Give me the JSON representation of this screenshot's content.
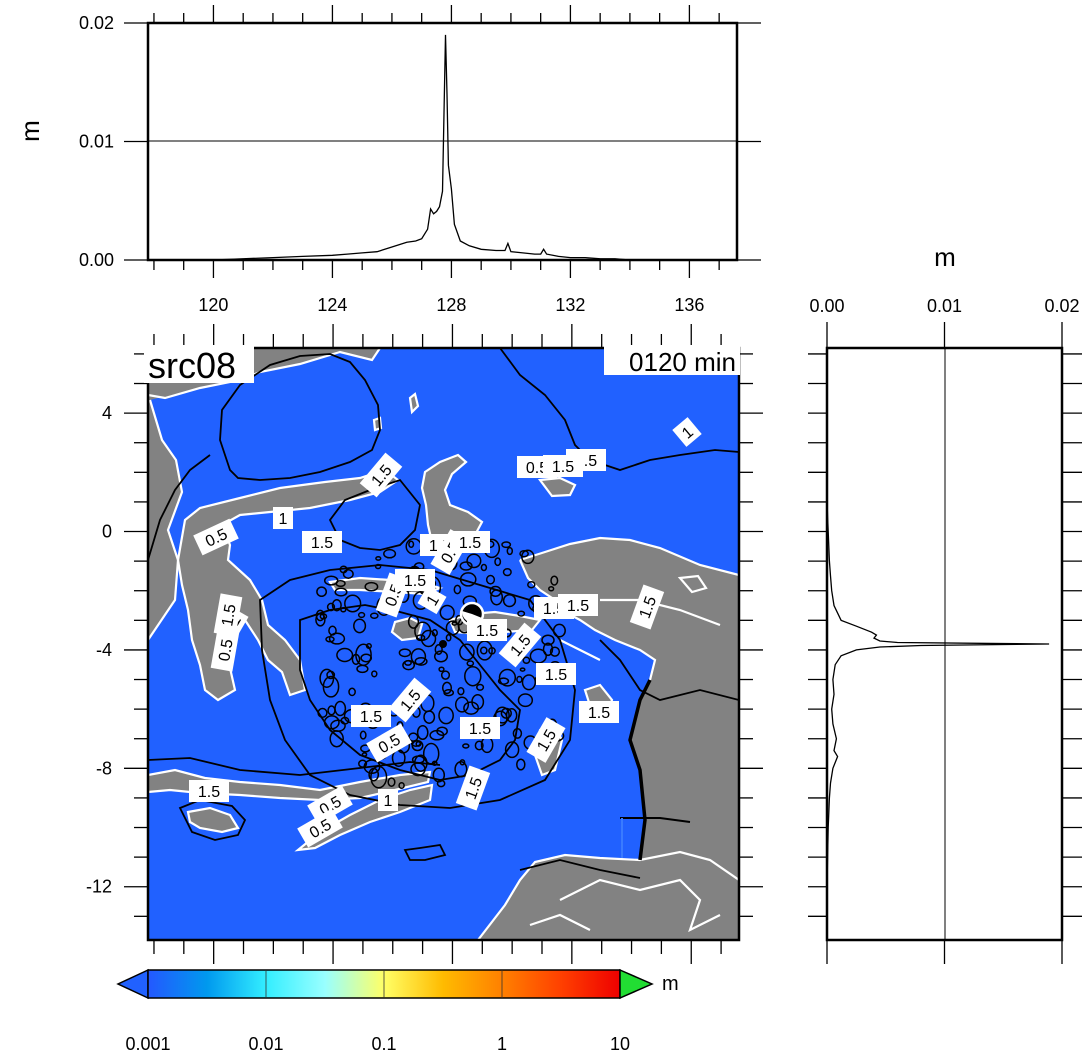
{
  "chart_data": [
    {
      "id": "top-profile",
      "type": "line",
      "title": "",
      "xlabel": "",
      "ylabel": "m",
      "xlim": [
        117.8,
        137.6
      ],
      "ylim": [
        0,
        0.02
      ],
      "xticks": [
        120,
        124,
        128,
        132,
        136
      ],
      "xtick_labels": [
        "120",
        "124",
        "128",
        "132",
        "136"
      ],
      "yticks": [
        0.0,
        0.01,
        0.02
      ],
      "ytick_labels": [
        "0.00",
        "0.01",
        "0.02"
      ],
      "reference_line_y": 0.01,
      "series": [
        {
          "x": [
            117.8,
            119.0,
            120.0,
            121.0,
            122.0,
            123.0,
            124.0,
            124.5,
            125.0,
            125.5,
            126.0,
            126.5,
            126.8,
            127.0,
            127.2,
            127.3,
            127.4,
            127.5,
            127.6,
            127.7,
            127.8,
            127.85,
            127.9,
            128.0,
            128.1,
            128.3,
            128.6,
            129.0,
            129.5,
            129.8,
            129.9,
            130.0,
            130.4,
            130.8,
            131.0,
            131.1,
            131.2,
            131.6,
            132.0,
            132.5,
            133.0,
            133.5,
            134.0,
            135.0,
            136.0,
            137.6
          ],
          "y": [
            0.0,
            0.0,
            0.0,
            0.0001,
            0.0002,
            0.0003,
            0.0004,
            0.0005,
            0.0006,
            0.0007,
            0.0011,
            0.0015,
            0.0016,
            0.0018,
            0.0026,
            0.0043,
            0.0039,
            0.0041,
            0.0045,
            0.0058,
            0.019,
            0.014,
            0.008,
            0.006,
            0.003,
            0.0016,
            0.0012,
            0.0009,
            0.0008,
            0.0008,
            0.0014,
            0.0007,
            0.0006,
            0.0005,
            0.0005,
            0.0009,
            0.0005,
            0.0003,
            0.0002,
            0.0002,
            0.0001,
            0.0001,
            0.0,
            0.0,
            0.0,
            0.0
          ]
        }
      ]
    },
    {
      "id": "right-profile",
      "type": "line",
      "title": "",
      "xlabel": "m",
      "ylabel": "",
      "xlim": [
        0,
        0.02
      ],
      "ylim": [
        -13.8,
        6.2
      ],
      "xticks": [
        0.0,
        0.01,
        0.02
      ],
      "xtick_labels": [
        "0.00",
        "0.01",
        "0.02"
      ],
      "reference_line_x": 0.01,
      "series": [
        {
          "y": [
            6.2,
            4.0,
            2.0,
            1.0,
            0.0,
            -1.0,
            -1.5,
            -2.0,
            -2.5,
            -3.0,
            -3.2,
            -3.4,
            -3.5,
            -3.6,
            -3.7,
            -3.75,
            -3.8,
            -3.85,
            -3.9,
            -4.0,
            -4.2,
            -4.5,
            -5.0,
            -5.5,
            -6.0,
            -6.5,
            -7.0,
            -7.4,
            -7.6,
            -8.0,
            -8.5,
            -9.0,
            -10.0,
            -12.0,
            -13.8
          ],
          "x": [
            0.0,
            0.0,
            0.0,
            0.0,
            0.0001,
            0.0002,
            0.0003,
            0.0004,
            0.0006,
            0.0012,
            0.0025,
            0.0038,
            0.0042,
            0.004,
            0.0045,
            0.006,
            0.0189,
            0.008,
            0.0045,
            0.0025,
            0.0012,
            0.0007,
            0.0005,
            0.0006,
            0.0004,
            0.0005,
            0.0008,
            0.0006,
            0.0009,
            0.0005,
            0.0003,
            0.0002,
            0.0001,
            0.0,
            0.0
          ]
        }
      ]
    },
    {
      "id": "map",
      "type": "heatmap",
      "title": "src08",
      "subtitle": "0120 min",
      "xlim": [
        117.8,
        137.6
      ],
      "ylim": [
        -13.8,
        6.2
      ],
      "xticks": [
        120,
        124,
        128,
        132,
        136
      ],
      "yticks": [
        4,
        0,
        -4,
        -8,
        -12
      ],
      "ytick_labels": [
        "4",
        "0",
        "-4",
        "-8",
        "-12"
      ],
      "ocean_color": "#2161ff",
      "land_color": "#828282",
      "contour_labels": [
        "1.5",
        "1",
        "0.5",
        "1.5",
        "1",
        "0.5",
        "1.5",
        "0.5",
        "1",
        "1.5",
        "1.5",
        "0.5",
        "1.5",
        "1.5",
        "1.5",
        "0.5",
        "1.5",
        "1.5",
        "1.5",
        "1",
        "1.5",
        "1.5",
        "1.5",
        "1.5",
        "1.5",
        "1.5",
        "0.5",
        "1.5",
        "1.5",
        "1.5",
        "0.5",
        "1",
        "0.5",
        "1.5"
      ]
    },
    {
      "id": "colorbar",
      "type": "heatmap",
      "unit_label": "m",
      "tick_labels": [
        "0.001",
        "0.01",
        "0.1",
        "1",
        "10"
      ],
      "stops": [
        "#2458ff",
        "#0099ee",
        "#33eeff",
        "#99ffff",
        "#ffff66",
        "#ffbb00",
        "#ff8000",
        "#ff4000",
        "#ee0000"
      ],
      "under_color": "#2161ff",
      "over_color": "#22dd33"
    }
  ]
}
